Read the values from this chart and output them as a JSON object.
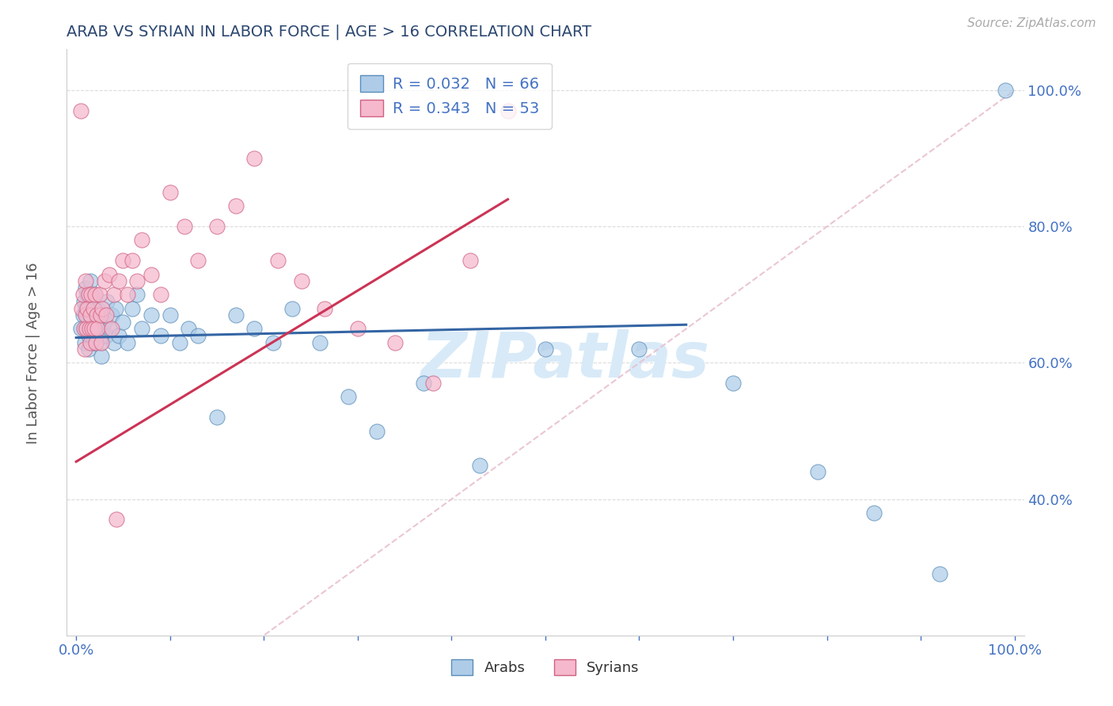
{
  "title": "ARAB VS SYRIAN IN LABOR FORCE | AGE > 16 CORRELATION CHART",
  "ylabel": "In Labor Force | Age > 16",
  "source_text": "Source: ZipAtlas.com",
  "legend_line1": "R = 0.032   N = 66",
  "legend_line2": "R = 0.343   N = 53",
  "arab_color_fill": "#aecce8",
  "arab_color_edge": "#5b8db8",
  "syrian_color_fill": "#f5b8cc",
  "syrian_color_edge": "#d06080",
  "arab_trend_color": "#3465a4",
  "syrian_trend_color": "#cc3355",
  "diagonal_color": "#e8c0d0",
  "background_color": "#ffffff",
  "grid_color": "#cccccc",
  "title_color": "#2c4770",
  "axis_label_color": "#555555",
  "tick_color": "#4472c4",
  "source_color": "#aaaaaa",
  "watermark_text": "ZIPatlas",
  "watermark_color": "#d8eaf8",
  "arab_R": 0.032,
  "arab_N": 66,
  "syrian_R": 0.343,
  "syrian_N": 53,
  "xlim": [
    -0.01,
    1.01
  ],
  "ylim": [
    0.2,
    1.06
  ],
  "arab_x": [
    0.005,
    0.007,
    0.008,
    0.009,
    0.01,
    0.01,
    0.01,
    0.011,
    0.012,
    0.013,
    0.013,
    0.014,
    0.015,
    0.015,
    0.016,
    0.017,
    0.018,
    0.018,
    0.019,
    0.02,
    0.02,
    0.021,
    0.022,
    0.022,
    0.023,
    0.025,
    0.025,
    0.026,
    0.027,
    0.028,
    0.03,
    0.032,
    0.033,
    0.035,
    0.038,
    0.04,
    0.042,
    0.045,
    0.05,
    0.055,
    0.06,
    0.065,
    0.07,
    0.08,
    0.09,
    0.1,
    0.11,
    0.12,
    0.13,
    0.15,
    0.17,
    0.19,
    0.21,
    0.23,
    0.26,
    0.29,
    0.32,
    0.37,
    0.43,
    0.5,
    0.6,
    0.7,
    0.79,
    0.85,
    0.92,
    0.99
  ],
  "arab_y": [
    0.65,
    0.67,
    0.69,
    0.63,
    0.71,
    0.68,
    0.65,
    0.67,
    0.7,
    0.64,
    0.62,
    0.68,
    0.66,
    0.72,
    0.64,
    0.69,
    0.65,
    0.63,
    0.67,
    0.65,
    0.7,
    0.63,
    0.66,
    0.64,
    0.68,
    0.65,
    0.67,
    0.63,
    0.61,
    0.65,
    0.66,
    0.64,
    0.69,
    0.65,
    0.67,
    0.63,
    0.68,
    0.64,
    0.66,
    0.63,
    0.68,
    0.7,
    0.65,
    0.67,
    0.64,
    0.67,
    0.63,
    0.65,
    0.64,
    0.52,
    0.67,
    0.65,
    0.63,
    0.68,
    0.63,
    0.55,
    0.5,
    0.57,
    0.45,
    0.62,
    0.62,
    0.57,
    0.44,
    0.38,
    0.29,
    1.0
  ],
  "syrian_x": [
    0.005,
    0.006,
    0.007,
    0.008,
    0.009,
    0.01,
    0.01,
    0.011,
    0.012,
    0.013,
    0.014,
    0.015,
    0.015,
    0.016,
    0.017,
    0.018,
    0.019,
    0.02,
    0.021,
    0.022,
    0.023,
    0.025,
    0.026,
    0.027,
    0.028,
    0.03,
    0.032,
    0.035,
    0.038,
    0.04,
    0.043,
    0.045,
    0.05,
    0.055,
    0.06,
    0.065,
    0.07,
    0.08,
    0.09,
    0.1,
    0.115,
    0.13,
    0.15,
    0.17,
    0.19,
    0.215,
    0.24,
    0.265,
    0.3,
    0.34,
    0.38,
    0.42,
    0.46
  ],
  "syrian_y": [
    0.97,
    0.68,
    0.7,
    0.65,
    0.62,
    0.67,
    0.72,
    0.65,
    0.68,
    0.7,
    0.65,
    0.67,
    0.63,
    0.7,
    0.65,
    0.68,
    0.65,
    0.7,
    0.63,
    0.67,
    0.65,
    0.7,
    0.67,
    0.63,
    0.68,
    0.72,
    0.67,
    0.73,
    0.65,
    0.7,
    0.37,
    0.72,
    0.75,
    0.7,
    0.75,
    0.72,
    0.78,
    0.73,
    0.7,
    0.85,
    0.8,
    0.75,
    0.8,
    0.83,
    0.9,
    0.75,
    0.72,
    0.68,
    0.65,
    0.63,
    0.57,
    0.75,
    0.97
  ],
  "arab_trend_x": [
    0.0,
    0.65
  ],
  "arab_trend_y": [
    0.637,
    0.656
  ],
  "syrian_trend_x": [
    0.0,
    0.46
  ],
  "syrian_trend_y": [
    0.455,
    0.84
  ]
}
